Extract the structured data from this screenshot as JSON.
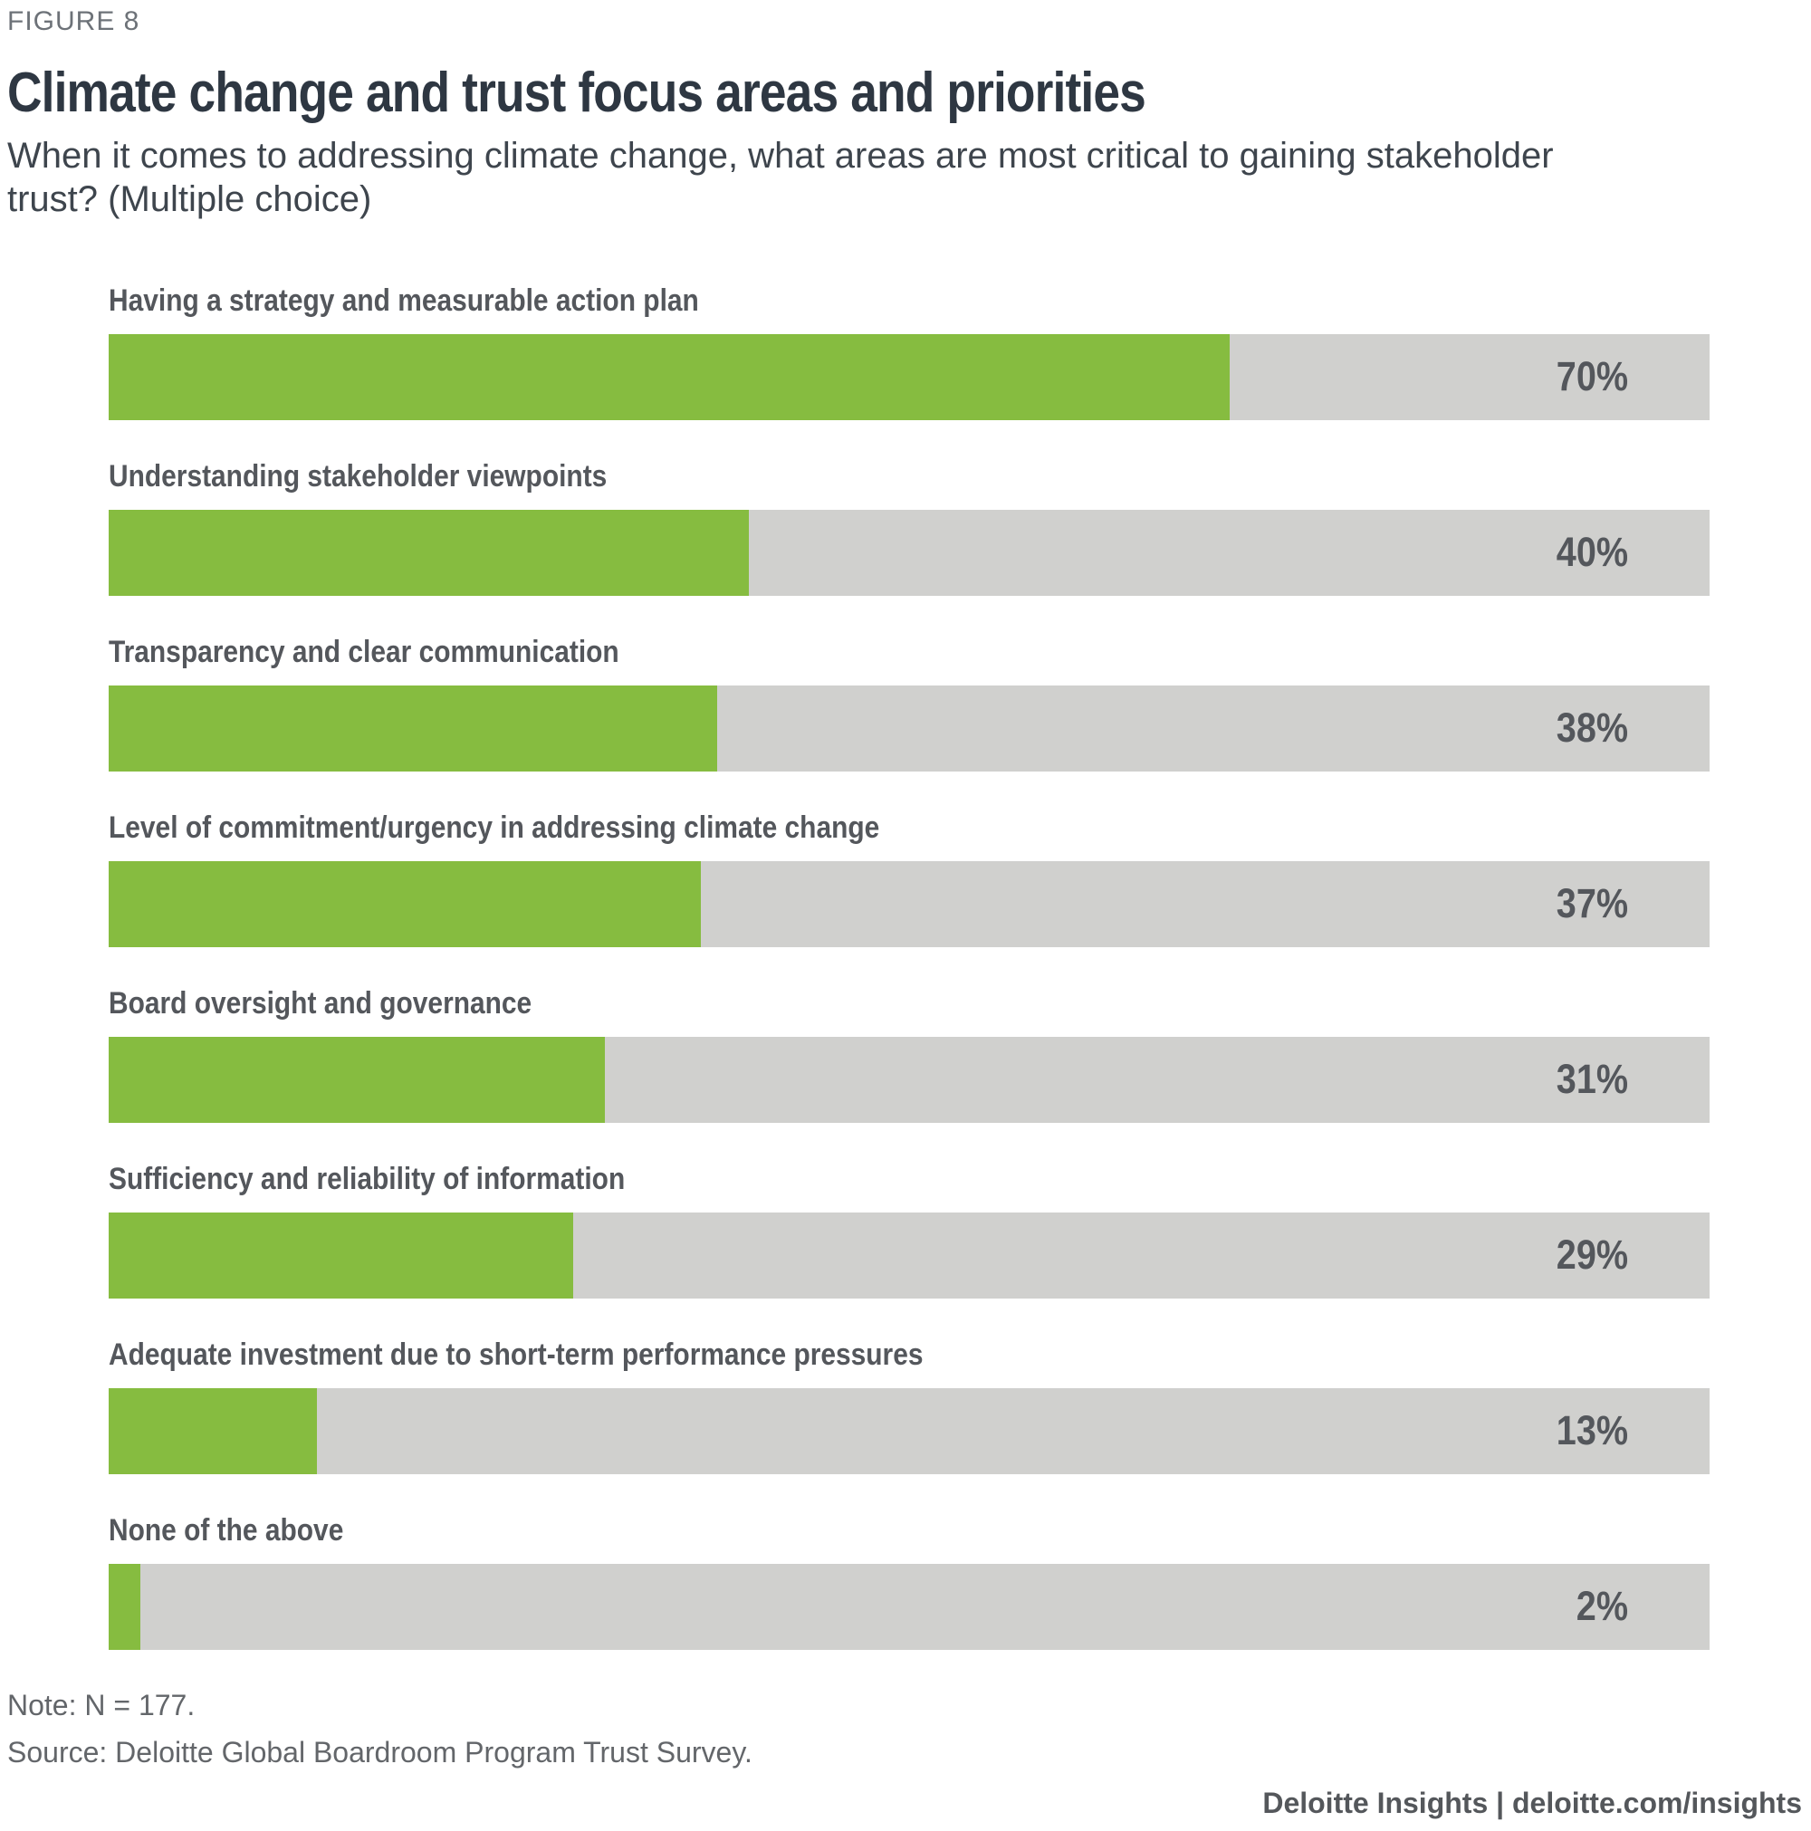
{
  "figure_label": "FIGURE 8",
  "title": "Climate change and trust focus areas and priorities",
  "subtitle": "When it comes to addressing climate change, what areas are most critical to gaining stakeholder trust? (Multiple choice)",
  "chart_data": {
    "type": "bar",
    "orientation": "horizontal",
    "unit": "percent",
    "categories": [
      "Having a strategy and measurable action plan",
      "Understanding stakeholder viewpoints",
      "Transparency and clear communication",
      "Level of commitment/urgency in addressing climate change",
      "Board oversight and governance",
      "Sufficiency and reliability of information",
      "Adequate investment due to short-term performance pressures",
      "None of the above"
    ],
    "values": [
      70,
      40,
      38,
      37,
      31,
      29,
      13,
      2
    ],
    "value_labels": [
      "70%",
      "40%",
      "38%",
      "37%",
      "31%",
      "29%",
      "13%",
      "2%"
    ],
    "xlim": [
      0,
      100
    ],
    "grid": false,
    "legend": "none",
    "bar_color": "#86bc40",
    "track_color": "#d0d0ce",
    "label_color": "#54575c"
  },
  "note": "Note: N = 177.",
  "source": "Source: Deloitte Global Boardroom Program Trust Survey.",
  "footer": "Deloitte Insights | deloitte.com/insights"
}
